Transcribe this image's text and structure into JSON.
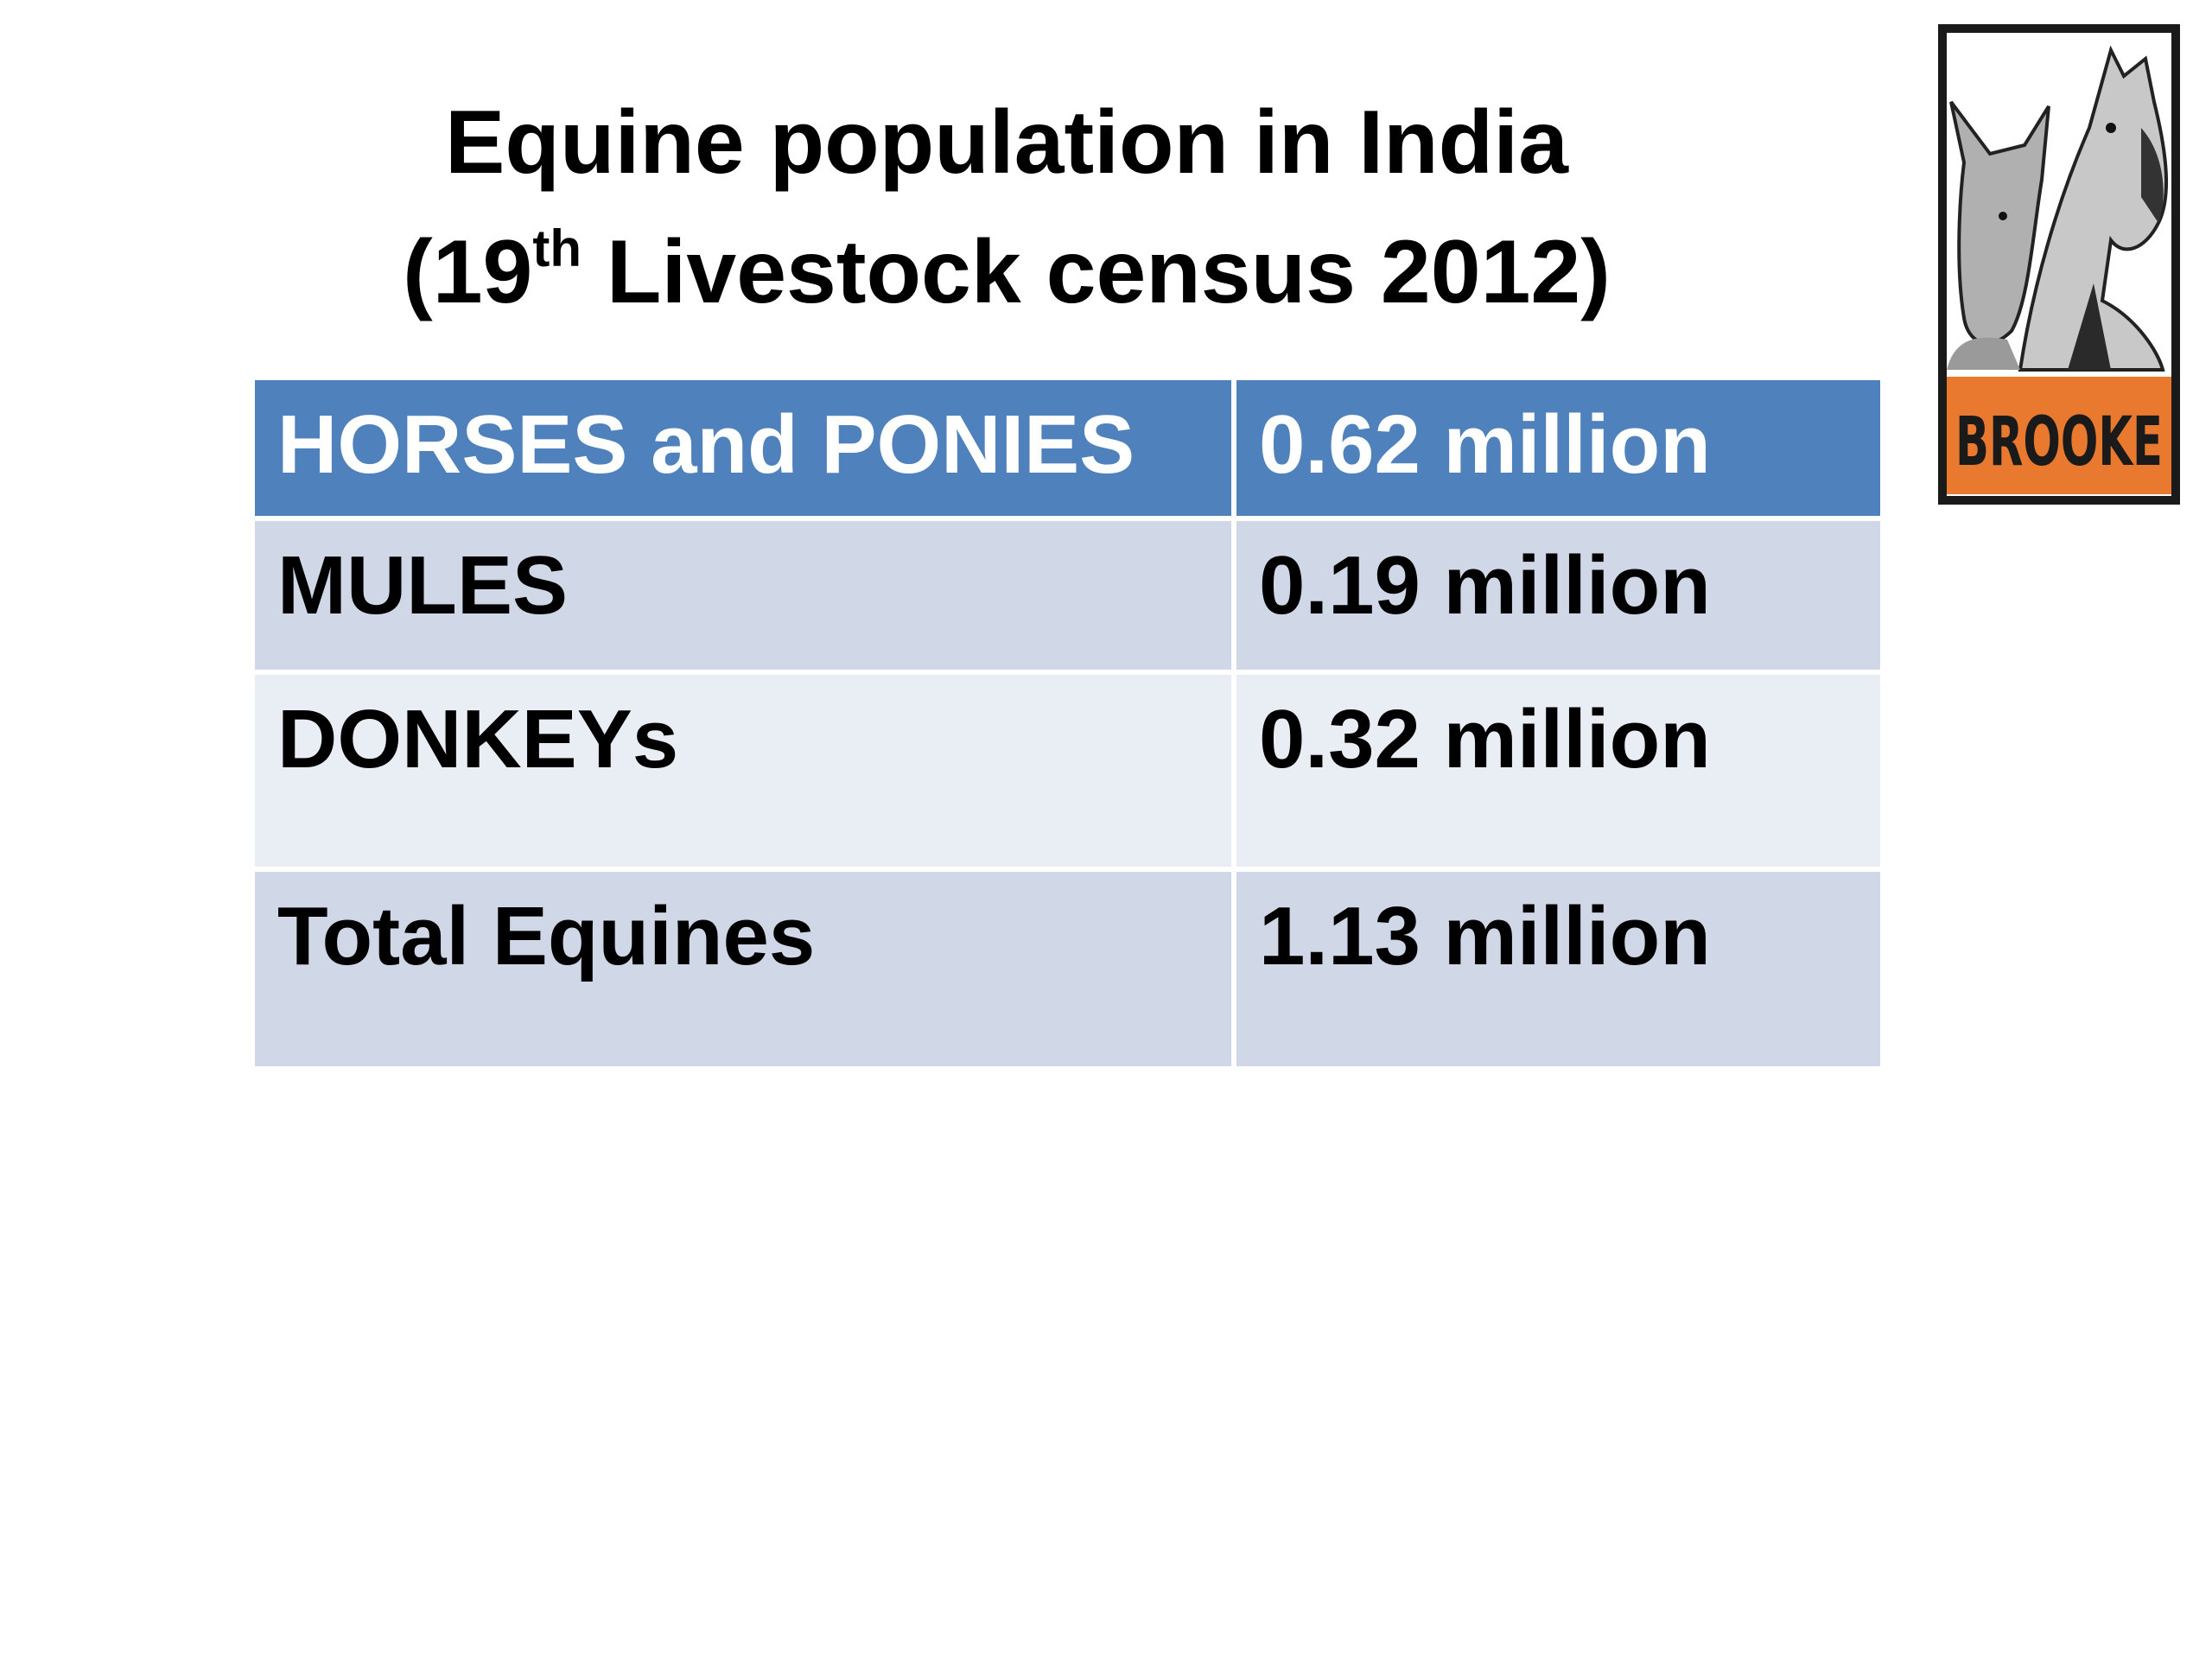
{
  "title": {
    "line1": "Equine population in India",
    "line2_prefix": "(19",
    "line2_sup": "th",
    "line2_suffix": " Livestock census 2012)"
  },
  "table": {
    "header": {
      "label": "HORSES and PONIES",
      "value": "0.62 million"
    },
    "rows": [
      {
        "label": "MULES",
        "value": "0.19 million"
      },
      {
        "label": "DONKEYs",
        "value": "0.32 million"
      },
      {
        "label": "Total Equines",
        "value": "1.13 million"
      }
    ]
  },
  "logo": {
    "text": "BROOKE",
    "band_color": "#e8792e"
  },
  "colors": {
    "header_bg": "#4f81bd",
    "row_dark": "#d0d8e8",
    "row_light": "#e9edf4"
  }
}
